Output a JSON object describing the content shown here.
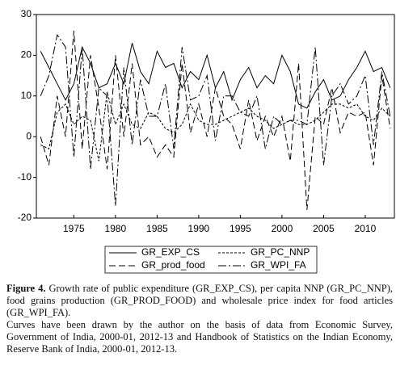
{
  "chart_data": {
    "type": "line",
    "x": [
      1971,
      1972,
      1973,
      1974,
      1975,
      1976,
      1977,
      1978,
      1979,
      1980,
      1981,
      1982,
      1983,
      1984,
      1985,
      1986,
      1987,
      1988,
      1989,
      1990,
      1991,
      1992,
      1993,
      1994,
      1995,
      1996,
      1997,
      1998,
      1999,
      2000,
      2001,
      2002,
      2003,
      2004,
      2005,
      2006,
      2007,
      2008,
      2009,
      2010,
      2011,
      2012,
      2013
    ],
    "series": [
      {
        "name": "GR_EXP_CS",
        "color": "#000000",
        "dash": "",
        "values": [
          21,
          17,
          13,
          9,
          13,
          22,
          18,
          12,
          13,
          18,
          13,
          23,
          16,
          13,
          21,
          17,
          18,
          12,
          16,
          14,
          20,
          12,
          16,
          9,
          14,
          17,
          12,
          15,
          13,
          20,
          16,
          8,
          7,
          11,
          14,
          9,
          10,
          14,
          17,
          21,
          16,
          17,
          12
        ]
      },
      {
        "name": "GR_PC_NNP",
        "color": "#000000",
        "dash": "3,2",
        "values": [
          -2,
          -3,
          6,
          8,
          3,
          5,
          4,
          -6,
          11,
          3,
          8,
          3,
          2,
          6,
          5,
          2,
          1,
          3,
          8,
          4,
          3,
          3,
          4,
          5,
          6,
          7,
          5,
          4,
          2,
          3,
          4,
          3,
          3,
          4,
          6,
          8,
          8,
          7,
          8,
          5,
          4,
          7,
          5
        ]
      },
      {
        "name": "GR_prod_food",
        "color": "#000000",
        "dash": "8,4",
        "values": [
          0,
          -7,
          10,
          0,
          26,
          -3,
          20,
          7,
          -8,
          20,
          0,
          18,
          -2,
          0,
          -5,
          -2,
          -5,
          18,
          1,
          8,
          0,
          12,
          5,
          3,
          -3,
          9,
          -1,
          5,
          0,
          5,
          -6,
          18,
          -18,
          5,
          3,
          12,
          1,
          6,
          5,
          6,
          -7,
          15,
          2
        ]
      },
      {
        "name": "GR_WPI_FA",
        "color": "#000000",
        "dash": "10,3,2,3",
        "values": [
          10,
          15,
          25,
          22,
          -5,
          22,
          -8,
          12,
          10,
          -17,
          17,
          -2,
          14,
          5,
          5,
          13,
          -3,
          22,
          9,
          10,
          15,
          -1,
          10,
          10,
          6,
          5,
          10,
          -3,
          5,
          3,
          4,
          4,
          3,
          22,
          -7,
          10,
          13,
          8,
          10,
          15,
          -2,
          16,
          5
        ]
      }
    ],
    "xlim": [
      1970.5,
      2013.5
    ],
    "xticks": [
      1975,
      1980,
      1985,
      1990,
      1995,
      2000,
      2005,
      2010
    ],
    "ylim": [
      -20,
      30
    ],
    "yticks": [
      -20,
      -10,
      0,
      10,
      20,
      30
    ],
    "caption_label": "Figure 4.",
    "caption": "Growth rate of public expenditure (GR_EXP_CS), per capita NNP (GR_PC_NNP), food grains production (GR_PROD_FOOD) and wholesale price index for food articles (GR_WPI_FA).",
    "note": "Curves have been drawn by the author on the basis of data from Economic Survey, Government of India, 2000-01, 2012-13 and Handbook of Statistics on the Indian Economy, Reserve Bank of India, 2000-01, 2012-13."
  }
}
